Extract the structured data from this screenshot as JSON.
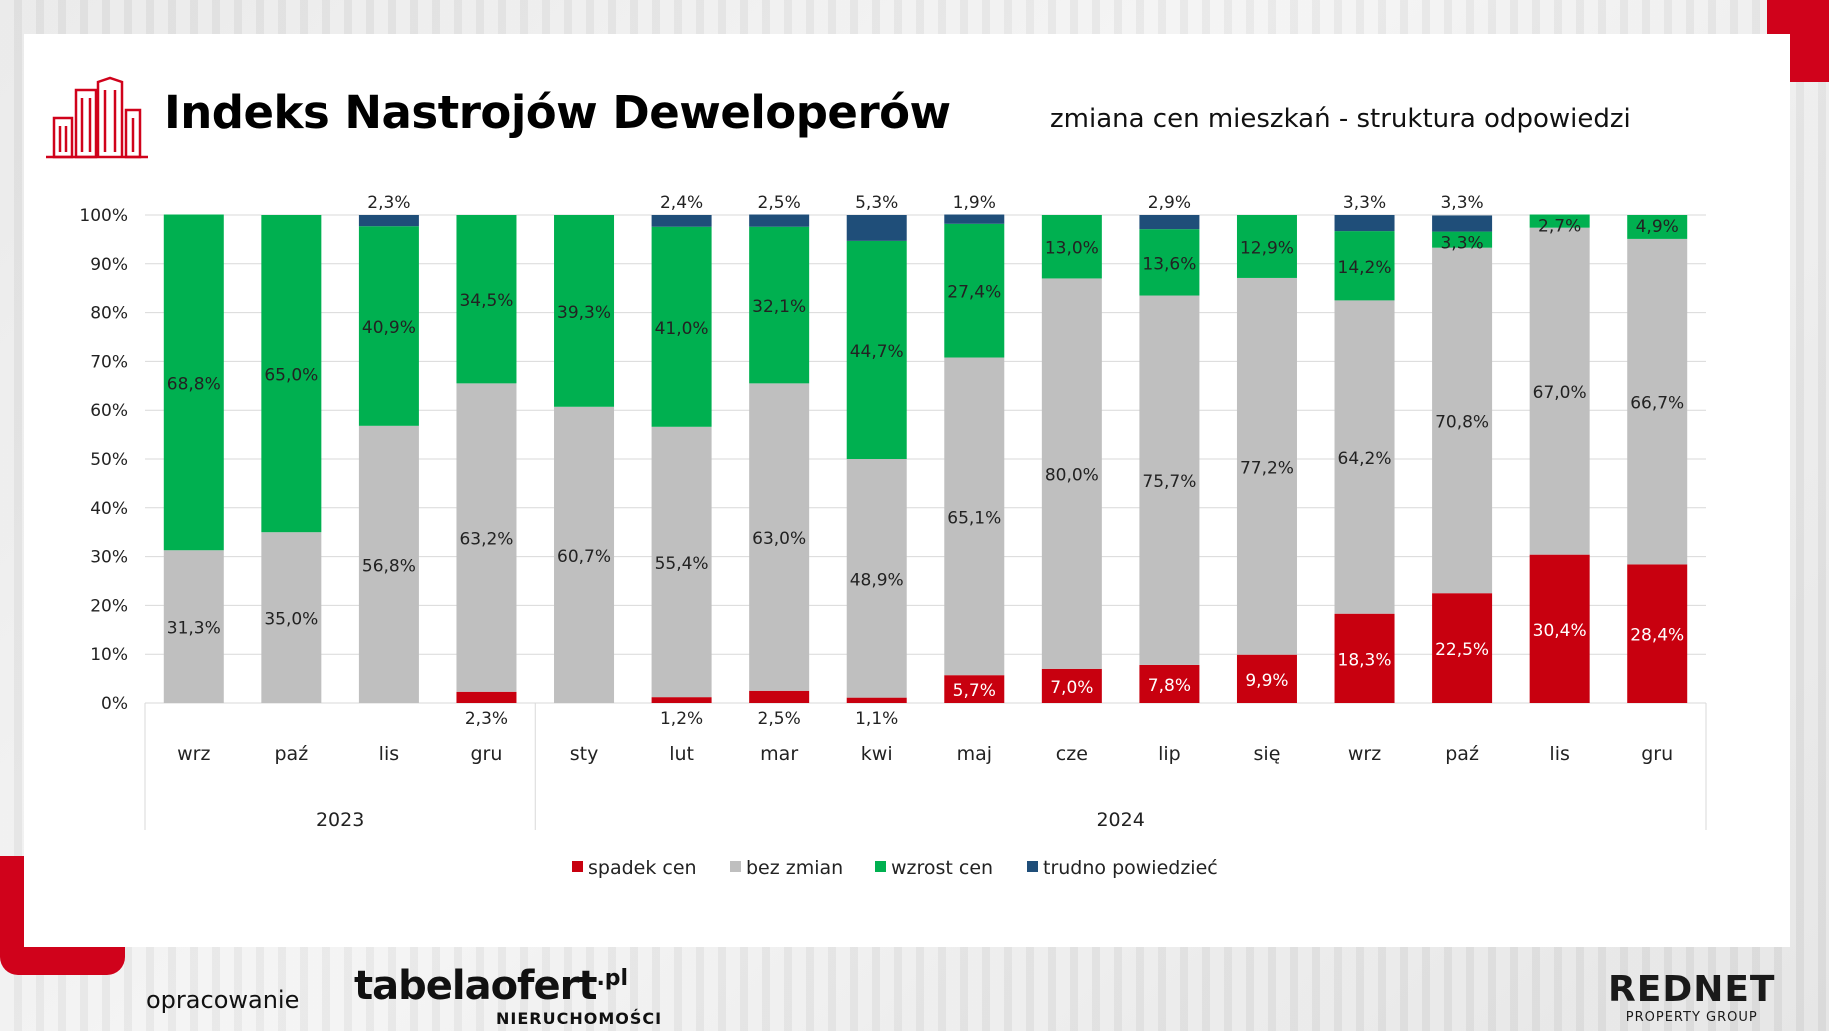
{
  "header": {
    "title": "Indeks Nastrojów Deweloperów",
    "subtitle": "zmiana cen mieszkań - struktura odpowiedzi"
  },
  "footer": {
    "prepared_by": "opracowanie",
    "brand_main": "tabelaofert",
    "brand_suffix": ".pl",
    "brand_sub": "NIERUCHOMOŚCI",
    "partner_main": "REDNET",
    "partner_sub": "PROPERTY GROUP"
  },
  "colors": {
    "red": "#c8000f",
    "grey": "#bfbfbf",
    "green": "#00b050",
    "navy": "#1f4e79",
    "accent": "#d0021b"
  },
  "chart_data": {
    "type": "bar",
    "stacked": true,
    "categories": [
      "wrz",
      "paź",
      "lis",
      "gru",
      "sty",
      "lut",
      "mar",
      "kwi",
      "maj",
      "cze",
      "lip",
      "się",
      "wrz",
      "paź",
      "lis",
      "gru"
    ],
    "groups": [
      {
        "label": "2023",
        "count": 4
      },
      {
        "label": "2024",
        "count": 12
      }
    ],
    "ylim": [
      0,
      100
    ],
    "yticks": [
      "0%",
      "10%",
      "20%",
      "30%",
      "40%",
      "50%",
      "60%",
      "70%",
      "80%",
      "90%",
      "100%"
    ],
    "series": [
      {
        "name": "spadek cen",
        "color": "#c8000f",
        "values": [
          0,
          0,
          0,
          2.3,
          0,
          1.2,
          2.5,
          1.1,
          5.7,
          7.0,
          7.8,
          9.9,
          18.3,
          22.5,
          30.4,
          28.4
        ],
        "labels": [
          "",
          "",
          "",
          "2,3%",
          "",
          "1,2%",
          "2,5%",
          "1,1%",
          "5,7%",
          "7,0%",
          "7,8%",
          "9,9%",
          "18,3%",
          "22,5%",
          "30,4%",
          "28,4%"
        ]
      },
      {
        "name": "bez zmian",
        "color": "#bfbfbf",
        "values": [
          31.3,
          35.0,
          56.8,
          63.2,
          60.7,
          55.4,
          63.0,
          48.9,
          65.1,
          80.0,
          75.7,
          77.2,
          64.2,
          70.8,
          67.0,
          66.7
        ],
        "labels": [
          "31,3%",
          "35,0%",
          "56,8%",
          "63,2%",
          "60,7%",
          "55,4%",
          "63,0%",
          "48,9%",
          "65,1%",
          "80,0%",
          "75,7%",
          "77,2%",
          "64,2%",
          "70,8%",
          "67,0%",
          "66,7%"
        ]
      },
      {
        "name": "wzrost cen",
        "color": "#00b050",
        "values": [
          68.8,
          65.0,
          40.9,
          34.5,
          39.3,
          41.0,
          32.1,
          44.7,
          27.4,
          13.0,
          13.6,
          12.9,
          14.2,
          3.3,
          2.7,
          4.9
        ],
        "labels": [
          "68,8%",
          "65,0%",
          "40,9%",
          "34,5%",
          "39,3%",
          "41,0%",
          "32,1%",
          "44,7%",
          "27,4%",
          "13,0%",
          "13,6%",
          "12,9%",
          "14,2%",
          "3,3%",
          "2,7%",
          "4,9%"
        ]
      },
      {
        "name": "trudno powiedzieć",
        "color": "#1f4e79",
        "values": [
          0,
          0,
          2.3,
          0,
          0,
          2.4,
          2.5,
          5.3,
          1.9,
          0,
          2.9,
          0,
          3.3,
          3.3,
          0,
          0
        ],
        "labels": [
          "",
          "",
          "2,3%",
          "",
          "",
          "2,4%",
          "2,5%",
          "5,3%",
          "1,9%",
          "",
          "2,9%",
          "",
          "3,3%",
          "3,3%",
          "",
          ""
        ]
      }
    ],
    "legend_position": "bottom",
    "grid": true,
    "title": "",
    "xlabel": "",
    "ylabel": ""
  }
}
